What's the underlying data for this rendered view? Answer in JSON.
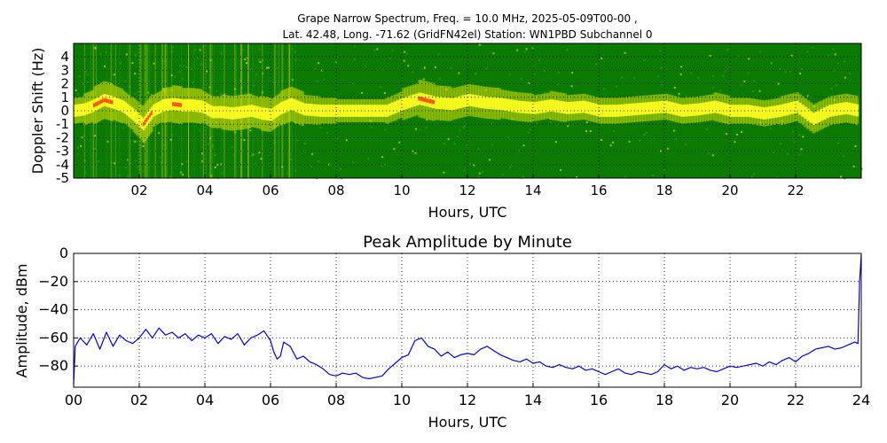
{
  "figure": {
    "title_line1": "Grape Narrow Spectrum, Freq. = 10.0 MHz, 2025-05-09T00-00 ,",
    "title_line2": "Lat.  42.48, Long. -71.62 (GridFN42el) Station: WN1PBD Subchannel 0"
  },
  "chart_data": [
    {
      "type": "heatmap",
      "title": "",
      "xlabel": "Hours, UTC",
      "ylabel": "Doppler Shift (Hz)",
      "xlim": [
        0,
        24
      ],
      "ylim": [
        -5,
        5
      ],
      "x_ticks": [
        "02",
        "04",
        "06",
        "08",
        "10",
        "12",
        "14",
        "16",
        "18",
        "20",
        "22"
      ],
      "x_tick_values": [
        2,
        4,
        6,
        8,
        10,
        12,
        14,
        16,
        18,
        20,
        22
      ],
      "y_ticks": [
        "4",
        "3",
        "2",
        "1",
        "0",
        "-1",
        "-2",
        "-3",
        "-4",
        "-5"
      ],
      "y_tick_values": [
        4,
        3,
        2,
        1,
        0,
        -1,
        -2,
        -3,
        -4,
        -5
      ],
      "grid": true,
      "colors": {
        "background": "#0a7a00",
        "low": "#2e9a08",
        "mid": "#c8d800",
        "high": "#ffff20",
        "peak": "#ff5010"
      },
      "ridge": {
        "hours": [
          0,
          0.3,
          0.6,
          0.9,
          1.2,
          1.5,
          1.8,
          2.1,
          2.4,
          2.7,
          3.0,
          3.3,
          3.6,
          3.9,
          4.2,
          4.5,
          4.8,
          5.1,
          5.4,
          5.7,
          6.0,
          6.3,
          6.6,
          7.0,
          7.5,
          8.0,
          8.5,
          9.0,
          9.5,
          10.0,
          10.5,
          11.0,
          11.5,
          12.0,
          12.5,
          13.0,
          13.5,
          14.0,
          14.5,
          15.0,
          15.5,
          16.0,
          16.5,
          17.0,
          17.5,
          18.0,
          18.5,
          19.0,
          19.5,
          20.0,
          20.5,
          21.0,
          21.5,
          22.0,
          22.5,
          23.0,
          23.5,
          23.9
        ],
        "doppler_hz": [
          0.0,
          0.1,
          0.4,
          0.8,
          0.6,
          0.3,
          -0.3,
          -1.0,
          0.0,
          0.4,
          0.5,
          0.4,
          0.4,
          0.3,
          -0.1,
          -0.1,
          -0.2,
          -0.1,
          0.0,
          -0.2,
          -0.3,
          0.2,
          0.5,
          0.1,
          0.0,
          0.0,
          0.0,
          0.0,
          0.0,
          0.5,
          0.9,
          0.6,
          0.5,
          0.8,
          0.6,
          0.5,
          0.3,
          0.2,
          0.4,
          0.2,
          0.3,
          0.0,
          0.0,
          0.1,
          0.2,
          0.3,
          0.0,
          0.1,
          0.3,
          0.0,
          0.0,
          -0.2,
          0.0,
          0.3,
          -0.6,
          0.0,
          0.2,
          0.0
        ],
        "intensity": [
          0.6,
          0.8,
          1.0,
          1.0,
          0.9,
          0.8,
          0.9,
          1.0,
          0.8,
          0.9,
          1.0,
          0.9,
          0.9,
          0.8,
          0.8,
          0.9,
          0.9,
          0.9,
          0.8,
          0.9,
          0.8,
          0.9,
          0.9,
          0.7,
          0.6,
          0.5,
          0.5,
          0.5,
          0.6,
          0.8,
          1.0,
          0.9,
          0.8,
          0.8,
          0.8,
          0.7,
          0.7,
          0.6,
          0.7,
          0.6,
          0.6,
          0.6,
          0.6,
          0.6,
          0.6,
          0.6,
          0.6,
          0.6,
          0.7,
          0.6,
          0.6,
          0.6,
          0.7,
          0.7,
          0.7,
          0.7,
          0.7,
          0.6
        ]
      }
    },
    {
      "type": "line",
      "title": "Peak Amplitude by Minute",
      "xlabel": "Hours, UTC",
      "ylabel": "Amplitude, dBm",
      "xlim": [
        0,
        24
      ],
      "ylim": [
        -95,
        0
      ],
      "x_ticks": [
        "00",
        "02",
        "04",
        "06",
        "08",
        "10",
        "12",
        "14",
        "16",
        "18",
        "20",
        "22",
        "24"
      ],
      "x_tick_values": [
        0,
        2,
        4,
        6,
        8,
        10,
        12,
        14,
        16,
        18,
        20,
        22,
        24
      ],
      "y_ticks": [
        "0",
        "−20",
        "−40",
        "−60",
        "−80"
      ],
      "y_tick_values": [
        0,
        -20,
        -40,
        -60,
        -80
      ],
      "grid": true,
      "colors": {
        "line": "#0000ee"
      },
      "series": [
        {
          "x": [
            0.0,
            0.05,
            0.2,
            0.4,
            0.6,
            0.8,
            1.0,
            1.2,
            1.4,
            1.6,
            1.8,
            2.0,
            2.2,
            2.4,
            2.6,
            2.8,
            3.0,
            3.2,
            3.4,
            3.6,
            3.8,
            4.0,
            4.2,
            4.4,
            4.6,
            4.8,
            5.0,
            5.2,
            5.4,
            5.6,
            5.8,
            6.0,
            6.1,
            6.2,
            6.3,
            6.4,
            6.6,
            6.8,
            7.0,
            7.2,
            7.4,
            7.6,
            7.8,
            8.0,
            8.2,
            8.4,
            8.6,
            8.8,
            9.0,
            9.2,
            9.4,
            9.6,
            9.8,
            10.0,
            10.2,
            10.4,
            10.6,
            10.8,
            11.0,
            11.2,
            11.4,
            11.6,
            11.8,
            12.0,
            12.2,
            12.4,
            12.6,
            12.8,
            13.0,
            13.2,
            13.4,
            13.6,
            13.8,
            14.0,
            14.2,
            14.4,
            14.6,
            14.8,
            15.0,
            15.2,
            15.4,
            15.6,
            15.8,
            16.0,
            16.2,
            16.4,
            16.6,
            16.8,
            17.0,
            17.2,
            17.4,
            17.6,
            17.8,
            18.0,
            18.2,
            18.4,
            18.6,
            18.8,
            19.0,
            19.2,
            19.4,
            19.6,
            19.8,
            20.0,
            20.2,
            20.4,
            20.6,
            20.8,
            21.0,
            21.2,
            21.4,
            21.6,
            21.8,
            22.0,
            22.2,
            22.4,
            22.6,
            22.8,
            23.0,
            23.2,
            23.4,
            23.6,
            23.8,
            23.9,
            23.95,
            24.0
          ],
          "y": [
            -93,
            -66,
            -60,
            -65,
            -57,
            -68,
            -56,
            -66,
            -58,
            -62,
            -64,
            -60,
            -54,
            -60,
            -53,
            -58,
            -56,
            -60,
            -57,
            -62,
            -58,
            -60,
            -57,
            -64,
            -59,
            -61,
            -57,
            -65,
            -60,
            -58,
            -55,
            -62,
            -70,
            -75,
            -73,
            -63,
            -66,
            -75,
            -73,
            -77,
            -79,
            -82,
            -86,
            -87,
            -85,
            -86,
            -85,
            -88,
            -89,
            -88,
            -87,
            -82,
            -78,
            -74,
            -72,
            -62,
            -60,
            -66,
            -68,
            -73,
            -70,
            -74,
            -72,
            -71,
            -72,
            -68,
            -66,
            -69,
            -72,
            -74,
            -76,
            -77,
            -75,
            -78,
            -77,
            -80,
            -81,
            -79,
            -81,
            -82,
            -80,
            -83,
            -82,
            -84,
            -86,
            -84,
            -82,
            -85,
            -86,
            -84,
            -85,
            -86,
            -84,
            -79,
            -82,
            -80,
            -83,
            -81,
            -82,
            -81,
            -83,
            -84,
            -82,
            -80,
            -81,
            -80,
            -79,
            -78,
            -80,
            -77,
            -79,
            -76,
            -74,
            -77,
            -73,
            -71,
            -68,
            -67,
            -66,
            -68,
            -67,
            -65,
            -63,
            -64,
            -20,
            -1
          ]
        }
      ]
    }
  ]
}
